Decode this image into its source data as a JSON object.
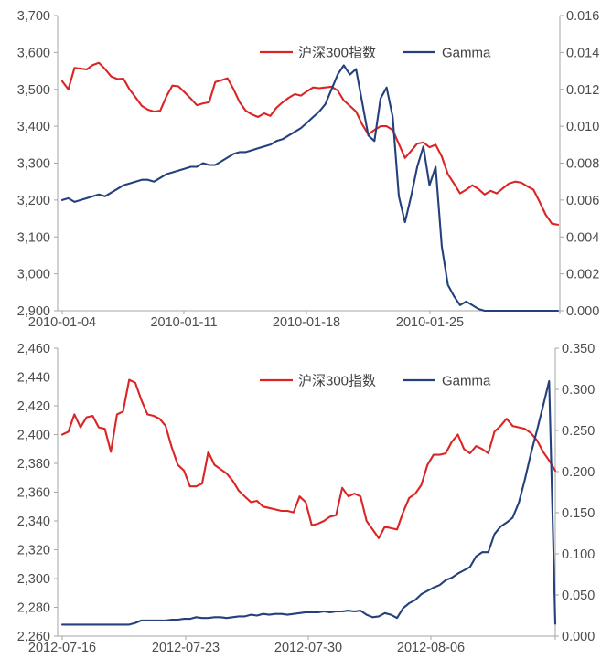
{
  "page": {
    "background": "#ffffff",
    "text_color": "#4d4d4d",
    "axis_color": "#a6a6a6"
  },
  "chart_data": [
    {
      "type": "line",
      "title": "",
      "legend_position": "top-center",
      "grid": false,
      "x_tick_labels": [
        "2010-01-04",
        "2010-01-11",
        "2010-01-18",
        "2010-01-25"
      ],
      "left_axis": {
        "min": 2900,
        "max": 3700,
        "tick_labels": [
          "3,700",
          "3,600",
          "3,500",
          "3,400",
          "3,300",
          "3,200",
          "3,100",
          "3,000",
          "2,900"
        ]
      },
      "right_axis": {
        "min": 0,
        "max": 0.016,
        "tick_labels": [
          "0.016",
          "0.014",
          "0.012",
          "0.010",
          "0.008",
          "0.006",
          "0.004",
          "0.002",
          "0.000"
        ]
      },
      "series": [
        {
          "name": "沪深300指数",
          "color": "#db2424",
          "axis": "left",
          "values": [
            3522,
            3500,
            3558,
            3556,
            3554,
            3566,
            3572,
            3555,
            3535,
            3528,
            3529,
            3500,
            3478,
            3455,
            3445,
            3440,
            3442,
            3480,
            3510,
            3508,
            3492,
            3475,
            3457,
            3462,
            3465,
            3520,
            3525,
            3530,
            3500,
            3465,
            3442,
            3432,
            3425,
            3435,
            3428,
            3450,
            3465,
            3477,
            3487,
            3483,
            3495,
            3505,
            3503,
            3505,
            3507,
            3497,
            3470,
            3455,
            3440,
            3405,
            3378,
            3390,
            3400,
            3400,
            3390,
            3352,
            3314,
            3333,
            3353,
            3356,
            3343,
            3350,
            3318,
            3270,
            3245,
            3218,
            3228,
            3240,
            3230,
            3215,
            3225,
            3218,
            3232,
            3245,
            3250,
            3247,
            3237,
            3228,
            3195,
            3160,
            3136,
            3133
          ]
        },
        {
          "name": "Gamma",
          "color": "#24417c",
          "axis": "right",
          "values": [
            0.006,
            0.0061,
            0.0059,
            0.006,
            0.0061,
            0.0062,
            0.0063,
            0.0062,
            0.0064,
            0.0066,
            0.0068,
            0.0069,
            0.007,
            0.0071,
            0.0071,
            0.007,
            0.0072,
            0.0074,
            0.0075,
            0.0076,
            0.0077,
            0.0078,
            0.0078,
            0.008,
            0.0079,
            0.0079,
            0.0081,
            0.0083,
            0.0085,
            0.0086,
            0.0086,
            0.0087,
            0.0088,
            0.0089,
            0.009,
            0.0092,
            0.0093,
            0.0095,
            0.0097,
            0.0099,
            0.0102,
            0.0105,
            0.0108,
            0.0112,
            0.012,
            0.0128,
            0.0133,
            0.0128,
            0.0131,
            0.0113,
            0.0095,
            0.0092,
            0.0115,
            0.0121,
            0.0105,
            0.0062,
            0.0048,
            0.0062,
            0.0078,
            0.0089,
            0.0068,
            0.0078,
            0.0035,
            0.0014,
            0.0008,
            0.0003,
            0.0005,
            0.0003,
            0.0001,
            0,
            0,
            0,
            0,
            0,
            0,
            0,
            0,
            0,
            0,
            0,
            0,
            0
          ]
        }
      ]
    },
    {
      "type": "line",
      "title": "",
      "legend_position": "top-center",
      "grid": false,
      "x_tick_labels": [
        "2012-07-16",
        "2012-07-23",
        "2012-07-30",
        "2012-08-06"
      ],
      "left_axis": {
        "min": 2260,
        "max": 2460,
        "tick_labels": [
          "2,460",
          "2,440",
          "2,420",
          "2,400",
          "2,380",
          "2,360",
          "2,340",
          "2,320",
          "2,300",
          "2,280",
          "2,260"
        ]
      },
      "right_axis": {
        "min": 0,
        "max": 0.35,
        "tick_labels": [
          "0.350",
          "0.300",
          "0.250",
          "0.200",
          "0.150",
          "0.100",
          "0.050",
          "0.000"
        ]
      },
      "series": [
        {
          "name": "沪深300指数",
          "color": "#db2424",
          "axis": "left",
          "values": [
            2400,
            2402,
            2414,
            2405,
            2412,
            2413,
            2405,
            2404,
            2388,
            2414,
            2416,
            2438,
            2436,
            2424,
            2414,
            2413,
            2411,
            2406,
            2391,
            2379,
            2375,
            2364,
            2364,
            2366,
            2388,
            2379,
            2376,
            2373,
            2368,
            2361,
            2357,
            2353,
            2354,
            2350,
            2349,
            2348,
            2347,
            2347,
            2346,
            2357,
            2353,
            2337,
            2338,
            2340,
            2343,
            2344,
            2363,
            2357,
            2359,
            2357,
            2340,
            2334,
            2328,
            2336,
            2335,
            2334,
            2346,
            2356,
            2359,
            2365,
            2379,
            2386,
            2386,
            2387,
            2395,
            2400,
            2390,
            2387,
            2392,
            2390,
            2387,
            2402,
            2406,
            2411,
            2406,
            2405,
            2404,
            2401,
            2396,
            2388,
            2382,
            2375
          ]
        },
        {
          "name": "Gamma",
          "color": "#24417c",
          "axis": "right",
          "values": [
            0.014,
            0.014,
            0.014,
            0.014,
            0.014,
            0.014,
            0.014,
            0.014,
            0.014,
            0.014,
            0.014,
            0.014,
            0.016,
            0.019,
            0.019,
            0.019,
            0.019,
            0.019,
            0.02,
            0.02,
            0.021,
            0.021,
            0.023,
            0.022,
            0.022,
            0.023,
            0.023,
            0.022,
            0.023,
            0.024,
            0.024,
            0.026,
            0.025,
            0.027,
            0.026,
            0.027,
            0.027,
            0.026,
            0.027,
            0.028,
            0.029,
            0.029,
            0.029,
            0.03,
            0.029,
            0.03,
            0.03,
            0.031,
            0.03,
            0.031,
            0.026,
            0.023,
            0.024,
            0.028,
            0.026,
            0.022,
            0.034,
            0.04,
            0.044,
            0.051,
            0.055,
            0.059,
            0.062,
            0.068,
            0.071,
            0.076,
            0.08,
            0.084,
            0.097,
            0.102,
            0.102,
            0.124,
            0.133,
            0.138,
            0.144,
            0.162,
            0.19,
            0.222,
            0.25,
            0.28,
            0.31,
            0.015
          ]
        }
      ]
    }
  ]
}
